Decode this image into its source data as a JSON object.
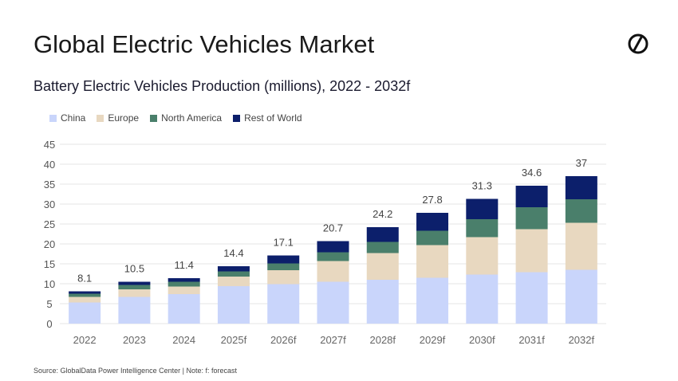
{
  "title": "Global Electric Vehicles Market",
  "subtitle": "Battery Electric Vehicles Production (millions), 2022 - 2032f",
  "source": "Source: GlobalData Power Intelligence Center | Note: f: forecast",
  "chart_data": {
    "type": "bar",
    "stacked": true,
    "title": "Battery Electric Vehicles Production (millions), 2022 - 2032f",
    "xlabel": "",
    "ylabel": "",
    "ylim": [
      0,
      45
    ],
    "yticks": [
      0,
      5,
      10,
      15,
      20,
      25,
      30,
      35,
      40,
      45
    ],
    "grid": true,
    "legend_position": "top-left",
    "categories": [
      "2022",
      "2023",
      "2024",
      "2025f",
      "2026f",
      "2027f",
      "2028f",
      "2029f",
      "2030f",
      "2031f",
      "2032f"
    ],
    "series": [
      {
        "name": "China",
        "color": "#c9d5fb",
        "values": [
          5.3,
          6.7,
          7.4,
          9.4,
          9.9,
          10.5,
          11.0,
          11.5,
          12.3,
          12.9,
          13.5
        ]
      },
      {
        "name": "Europe",
        "color": "#e8d8c0",
        "values": [
          1.4,
          1.9,
          1.9,
          2.4,
          3.5,
          5.2,
          6.7,
          8.2,
          9.4,
          10.8,
          11.8
        ]
      },
      {
        "name": "North America",
        "color": "#4a7f6b",
        "values": [
          0.8,
          1.1,
          1.2,
          1.3,
          1.7,
          2.2,
          2.8,
          3.6,
          4.5,
          5.5,
          5.9
        ]
      },
      {
        "name": "Rest of World",
        "color": "#0c1f6b",
        "values": [
          0.6,
          0.8,
          0.9,
          1.3,
          2.0,
          2.8,
          3.7,
          4.5,
          5.1,
          5.4,
          5.8
        ]
      }
    ],
    "totals": [
      "8.1",
      "10.5",
      "11.4",
      "14.4",
      "17.1",
      "20.7",
      "24.2",
      "27.8",
      "31.3",
      "34.6",
      "37"
    ]
  }
}
